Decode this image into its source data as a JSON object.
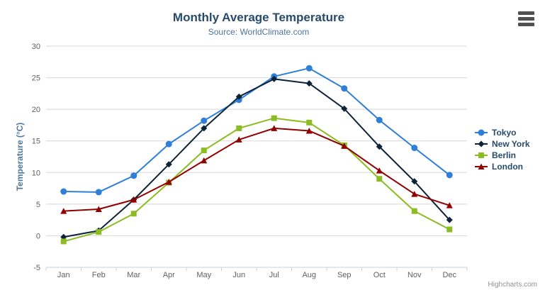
{
  "toolbar": {
    "export_icon": "hamburger-menu-icon"
  },
  "chart_data": {
    "type": "line",
    "title": "Monthly Average Temperature",
    "subtitle": "Source: WorldClimate.com",
    "xlabel": "",
    "ylabel": "Temperature (°C)",
    "ylim": [
      -5,
      30
    ],
    "yticks": [
      -5,
      0,
      5,
      10,
      15,
      20,
      25,
      30
    ],
    "grid": "horizontal",
    "legend_position": "right",
    "credits": "Highcharts.com",
    "categories": [
      "Jan",
      "Feb",
      "Mar",
      "Apr",
      "May",
      "Jun",
      "Jul",
      "Aug",
      "Sep",
      "Oct",
      "Nov",
      "Dec"
    ],
    "series": [
      {
        "name": "Tokyo",
        "marker": "circle",
        "color": "#2f7ed8",
        "values": [
          7.0,
          6.9,
          9.5,
          14.5,
          18.2,
          21.5,
          25.2,
          26.5,
          23.3,
          18.3,
          13.9,
          9.6
        ]
      },
      {
        "name": "New York",
        "marker": "diamond",
        "color": "#0d233a",
        "values": [
          -0.2,
          0.8,
          5.7,
          11.3,
          17.0,
          22.0,
          24.8,
          24.1,
          20.1,
          14.1,
          8.6,
          2.5
        ]
      },
      {
        "name": "Berlin",
        "marker": "square",
        "color": "#8bbc21",
        "values": [
          -0.9,
          0.6,
          3.5,
          8.4,
          13.5,
          17.0,
          18.6,
          17.9,
          14.3,
          9.0,
          3.9,
          1.0
        ]
      },
      {
        "name": "London",
        "marker": "triangle",
        "color": "#910000",
        "values": [
          3.9,
          4.2,
          5.7,
          8.5,
          11.9,
          15.2,
          17.0,
          16.6,
          14.2,
          10.3,
          6.6,
          4.8
        ]
      }
    ],
    "colors": {
      "title": "#274b6d",
      "subtitle": "#4d759e",
      "axis_title": "#4d759e",
      "axis_labels": "#606060",
      "grid_line": "#d8d8d8",
      "axis_line": "#c0d0e0",
      "legend_text": "#274b6d",
      "credits": "#909090"
    }
  }
}
